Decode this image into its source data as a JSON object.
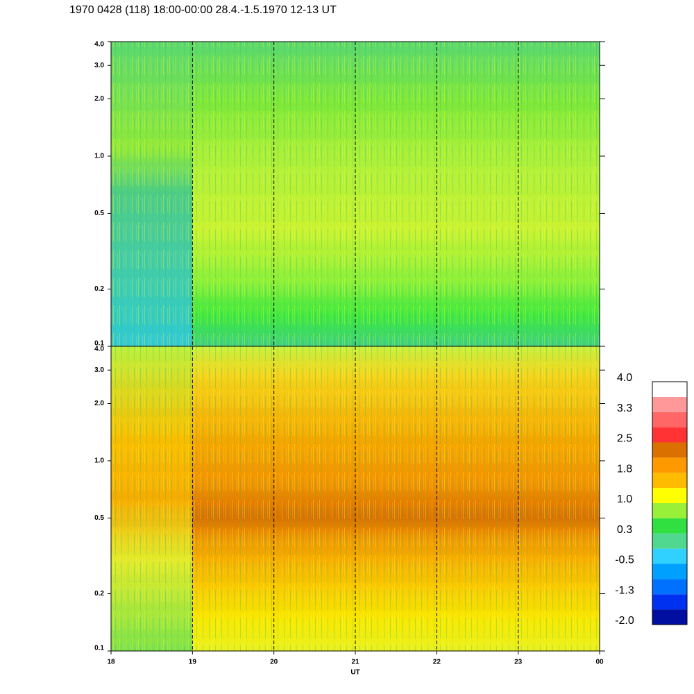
{
  "chart_data": [
    {
      "type": "heatmap",
      "title": "1970 0428 (118) 18:00-00:00 28.4.-1.5.1970  12-13 UT",
      "xlim": [
        18,
        24
      ],
      "xticks": [
        19,
        20,
        21,
        22,
        23
      ],
      "ylim": [
        0.1,
        4.0
      ],
      "log_y": true,
      "yticks": [
        0.1,
        0.2,
        0.5,
        {
          "value": 1,
          "label": "1.0"
        },
        {
          "value": 2,
          "label": "2.0"
        },
        {
          "value": 3,
          "label": "3.0"
        },
        {
          "value": 4,
          "label": "4.0"
        }
      ],
      "grid": true
    },
    {
      "type": "heatmap",
      "xlabel": "UT",
      "xlim": [
        18,
        24
      ],
      "xticks": [
        18,
        19,
        20,
        21,
        22,
        23,
        {
          "value": 24,
          "label": "00"
        }
      ],
      "ylim": [
        0.1,
        4.0
      ],
      "log_y": true,
      "yticks": [
        0.1,
        0.2,
        0.5,
        {
          "value": 1,
          "label": "1.0"
        },
        {
          "value": 2,
          "label": "2.0"
        },
        {
          "value": 3,
          "label": "3.0"
        },
        {
          "value": 4,
          "label": "4.0"
        }
      ],
      "grid": true
    },
    {
      "type": "colorbar",
      "zlim": [
        -2,
        4
      ],
      "zticks": [
        {
          "value": -2,
          "label": "-2.0"
        },
        {
          "value": -1.25,
          "label": "-1.3"
        },
        -0.5,
        {
          "value": 0.25,
          "label": "0.3"
        },
        {
          "value": 1,
          "label": "1.0"
        },
        {
          "value": 1.75,
          "label": "1.8"
        },
        2.5,
        {
          "value": 3.25,
          "label": "3.3"
        },
        {
          "value": 4,
          "label": "4.0"
        }
      ],
      "colors": [
        "#000000",
        "#000fa0",
        "#0030f0",
        "#0070ff",
        "#00a0ff",
        "#30d0ff",
        "#50d890",
        "#30e040",
        "#98f038",
        "#ffff00",
        "#ffbb00",
        "#ff9900",
        "#d97000",
        "#ff3333",
        "#ff6666",
        "#ff9999",
        "#ffffff"
      ]
    }
  ]
}
